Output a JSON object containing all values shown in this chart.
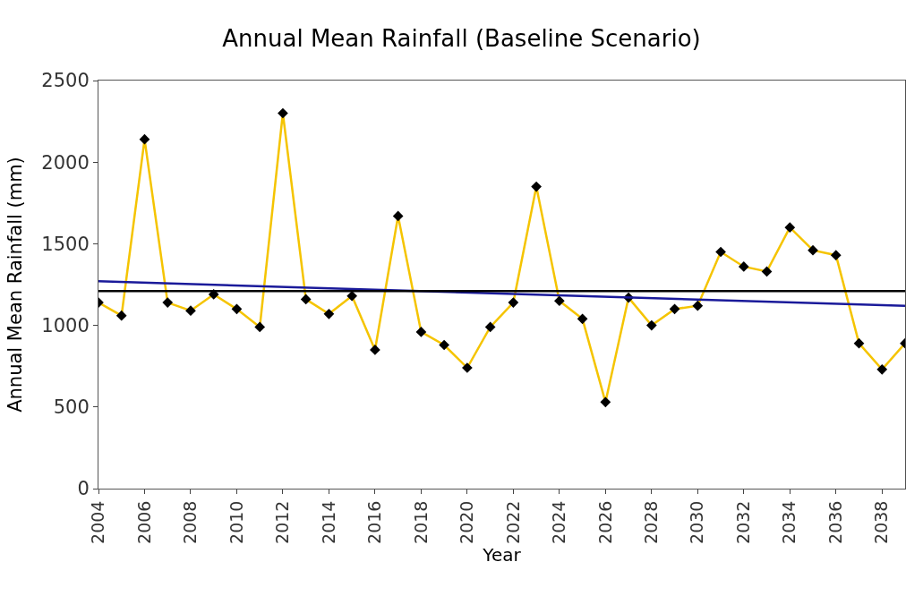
{
  "chart_data": {
    "type": "line",
    "title": "Annual Mean Rainfall (Baseline Scenario)",
    "xlabel": "Year",
    "ylabel": "Annual Mean Rainfall (mm)",
    "x": [
      2004,
      2005,
      2006,
      2007,
      2008,
      2009,
      2010,
      2011,
      2012,
      2013,
      2014,
      2015,
      2016,
      2017,
      2018,
      2019,
      2020,
      2021,
      2022,
      2023,
      2024,
      2025,
      2026,
      2027,
      2028,
      2029,
      2030,
      2031,
      2032,
      2033,
      2034,
      2035,
      2036,
      2037,
      2038,
      2039
    ],
    "series": [
      {
        "color": "#f5c400",
        "marker": "diamond",
        "values": [
          1140,
          1060,
          2140,
          1140,
          1090,
          1190,
          1100,
          990,
          2300,
          1160,
          1070,
          1180,
          850,
          1670,
          960,
          880,
          740,
          990,
          1140,
          1850,
          1150,
          1040,
          530,
          1170,
          1000,
          1100,
          1120,
          1450,
          1360,
          1330,
          1600,
          1460,
          1430,
          890,
          730,
          890
        ]
      },
      {
        "type": "line",
        "color": "#1a1a9a",
        "marker": "none",
        "x": [
          2004,
          2039
        ],
        "values": [
          1270,
          1120
        ]
      }
    ],
    "ref_lines": [
      {
        "axis": "y",
        "value": 1210,
        "color": "#000000"
      }
    ],
    "xlim": [
      2004,
      2039
    ],
    "xticks": [
      2004,
      2006,
      2008,
      2010,
      2012,
      2014,
      2016,
      2018,
      2020,
      2022,
      2024,
      2026,
      2028,
      2030,
      2032,
      2034,
      2036,
      2038
    ],
    "ylim": [
      0,
      2500
    ],
    "yticks": [
      0,
      500,
      1000,
      1500,
      2000,
      2500
    ],
    "grid": false
  }
}
